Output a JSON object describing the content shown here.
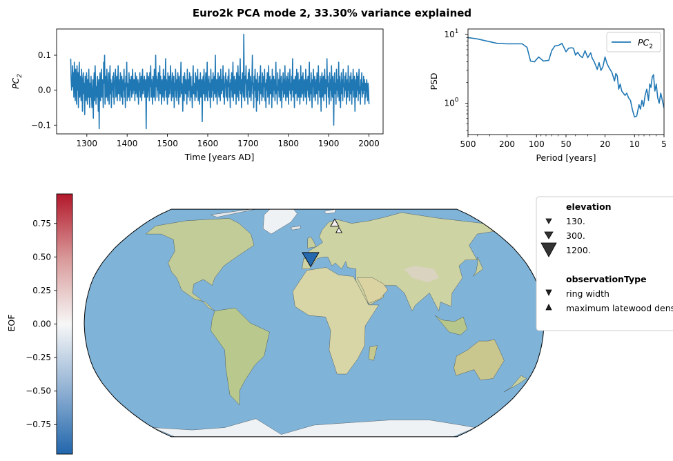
{
  "figure": {
    "title": "Euro2k PCA mode 2, 33.30% variance explained"
  },
  "chart_data": [
    {
      "id": "pc-timeseries",
      "type": "line",
      "xlabel": "Time [years AD]",
      "ylabel_main": "PC",
      "ylabel_sub": "2",
      "xlim": [
        1225,
        2035
      ],
      "ylim": [
        -0.125,
        0.175
      ],
      "xticks": [
        1300,
        1400,
        1500,
        1600,
        1700,
        1800,
        1900,
        2000
      ],
      "yticks": [
        -0.1,
        0.0,
        0.1
      ],
      "ytick_labels": [
        "−0.1",
        "0.0",
        "0.1"
      ],
      "series_color": "#1f77b4",
      "x_start": 1260,
      "x_end": 2000,
      "series_note_hidden": "",
      "values": [
        0.09,
        0.03,
        0.0,
        0.02,
        0.07,
        0.01,
        0.05,
        -0.02,
        0.08,
        0.03,
        -0.03,
        0.06,
        0.02,
        -0.04,
        0.07,
        0.0,
        0.05,
        -0.05,
        0.03,
        0.08,
        -0.02,
        0.04,
        0.01,
        -0.03,
        0.06,
        0.02,
        -0.06,
        0.03,
        0.05,
        -0.01,
        0.02,
        -0.07,
        0.04,
        0.0,
        -0.03,
        0.05,
        0.01,
        -0.04,
        0.03,
        -0.02,
        0.06,
        0.0,
        -0.05,
        0.02,
        -0.02,
        0.04,
        -0.01,
        -0.05,
        0.0,
        0.03,
        -0.08,
        0.01,
        0.05,
        -0.03,
        0.07,
        0.02,
        -0.04,
        0.01,
        -0.02,
        0.04,
        0.0,
        -0.06,
        0.03,
        -0.11,
        0.02,
        0.05,
        -0.03,
        0.01,
        0.06,
        -0.02,
        0.03,
        0.0,
        -0.05,
        0.08,
        0.02,
        0.1,
        -0.04,
        0.01,
        0.04,
        -0.02,
        0.06,
        0.0,
        -0.03,
        0.02,
        0.05,
        -0.04,
        0.01,
        0.07,
        -0.01,
        0.03,
        -0.05,
        0.02,
        0.0,
        0.04,
        -0.02,
        0.05,
        -0.04,
        0.01,
        0.03,
        0.06,
        -0.02,
        0.0,
        0.04,
        -0.03,
        0.02,
        0.07,
        -0.01,
        0.03,
        0.0,
        -0.03,
        0.05,
        0.02,
        -0.02,
        0.04,
        0.01,
        -0.04,
        0.03,
        0.0,
        0.06,
        -0.02,
        0.02,
        -0.05,
        0.04,
        0.01,
        0.08,
        -0.03,
        0.02,
        0.0,
        -0.02,
        0.05,
        0.01,
        -0.03,
        0.03,
        0.0,
        0.04,
        -0.02,
        0.02,
        0.06,
        -0.01,
        0.03,
        0.0,
        0.03,
        -0.03,
        0.05,
        -0.01,
        0.02,
        0.04,
        -0.02,
        0.01,
        0.03,
        -0.04,
        0.02,
        0.0,
        0.05,
        -0.02,
        0.01,
        0.04,
        -0.03,
        0.02,
        0.06,
        -0.01,
        0.03,
        0.0,
        0.04,
        -0.02,
        0.01,
        0.03,
        -0.11,
        0.02,
        0.05,
        -0.02,
        0.0,
        0.04,
        0.02,
        -0.03,
        0.05,
        0.01,
        0.07,
        -0.02,
        0.03,
        0.0,
        -0.04,
        0.04,
        0.02,
        -0.02,
        0.06,
        0.0,
        -0.03,
        0.1,
        0.01,
        0.04,
        -0.02,
        0.03,
        0.0,
        0.05,
        -0.03,
        0.02,
        0.07,
        -0.01,
        0.04,
        0.0,
        -0.04,
        0.03,
        0.01,
        -0.02,
        0.06,
        0.02,
        -0.03,
        0.04,
        0.0,
        0.09,
        -0.02,
        0.03,
        0.01,
        -0.04,
        0.05,
        0.02,
        -0.02,
        0.04,
        -0.01,
        0.03,
        0.07,
        0.0,
        -0.03,
        0.02,
        0.05,
        -0.02,
        0.01,
        0.04,
        -0.05,
        0.02,
        0.0,
        0.06,
        -0.02,
        0.03,
        -0.03,
        0.01,
        0.05,
        0.02,
        -0.04,
        0.04,
        0.0,
        -0.02,
        0.03,
        0.08,
        -0.01,
        0.02,
        0.0,
        -0.06,
        0.04,
        0.01,
        -0.03,
        0.05,
        0.02,
        -0.01,
        0.03,
        0.0,
        -0.04,
        0.06,
        0.01,
        -0.02,
        0.03,
        0.0,
        0.05,
        -0.03,
        0.02,
        0.04,
        -0.02,
        0.01,
        -0.05,
        0.03,
        0.07,
        -0.01,
        0.02,
        0.0,
        -0.03,
        0.05,
        0.01,
        -0.02,
        0.04,
        0.0,
        0.06,
        -0.03,
        0.02,
        0.03,
        -0.04,
        0.01,
        0.05,
        -0.02,
        0.0,
        0.03,
        -0.09,
        0.02,
        0.04,
        -0.01,
        0.06,
        0.0,
        -0.03,
        0.02,
        0.05,
        -0.02,
        0.01,
        0.08,
        -0.03,
        0.03,
        0.0,
        0.04,
        -0.02,
        0.02,
        -0.05,
        0.06,
        0.01,
        -0.02,
        0.03,
        0.0,
        0.05,
        -0.03,
        0.02,
        0.04,
        -0.01,
        0.1,
        -0.02,
        0.01,
        0.03,
        -0.04,
        0.02,
        0.05,
        0.0,
        -0.02,
        0.04,
        0.01,
        -0.03,
        0.06,
        0.02,
        -0.01,
        0.03,
        0.0,
        0.07,
        -0.02,
        0.04,
        -0.04,
        0.01,
        0.02,
        0.05,
        -0.02,
        0.03,
        0.0,
        -0.03,
        0.04,
        0.01,
        0.06,
        -0.02,
        0.02,
        -0.05,
        0.03,
        0.0,
        0.05,
        -0.02,
        0.01,
        0.08,
        -0.03,
        0.02,
        0.04,
        -0.01,
        0.0,
        0.03,
        -0.04,
        0.05,
        0.01,
        -0.02,
        0.07,
        0.02,
        -0.03,
        0.04,
        0.0,
        0.09,
        -0.01,
        0.03,
        -0.05,
        0.02,
        0.05,
        0.0,
        -0.02,
        0.16,
        0.01,
        -0.03,
        0.04,
        0.02,
        0.07,
        -0.02,
        0.01,
        0.03,
        -0.04,
        0.05,
        0.0,
        0.06,
        -0.02,
        0.02,
        0.04,
        -0.03,
        0.01,
        0.03,
        0.1,
        -0.01,
        0.02,
        -0.05,
        0.04,
        0.0,
        0.06,
        -0.02,
        0.03,
        -0.06,
        0.01,
        0.05,
        -0.03,
        0.02,
        0.0,
        0.04,
        -0.04,
        0.03,
        0.07,
        -0.01,
        0.02,
        -0.03,
        0.05,
        0.0,
        -0.02,
        0.04,
        0.01,
        0.06,
        -0.03,
        0.02,
        -0.05,
        0.03,
        0.0,
        0.05,
        -0.02,
        0.01,
        0.07,
        -0.04,
        0.02,
        0.04,
        -0.01,
        0.0,
        0.03,
        -0.05,
        0.06,
        0.01,
        -0.02,
        0.04,
        0.0,
        0.03,
        -0.03,
        0.02,
        0.08,
        -0.01,
        0.01,
        -0.04,
        0.05,
        0.0,
        0.03,
        -0.02,
        0.02,
        0.06,
        -0.03,
        0.01,
        0.04,
        -0.05,
        0.02,
        0.0,
        0.05,
        -0.02,
        0.03,
        -0.01,
        0.07,
        0.0,
        -0.03,
        0.02,
        0.04,
        -0.02,
        0.01,
        0.05,
        -0.04,
        0.03,
        0.0,
        0.06,
        -0.01,
        0.02,
        -0.03,
        0.04,
        0.0,
        0.09,
        -0.02,
        0.01,
        0.03,
        -0.05,
        0.02,
        0.04,
        -0.01,
        0.0,
        0.06,
        -0.03,
        0.02,
        0.05,
        -0.02,
        0.01,
        0.03,
        -0.04,
        0.0,
        0.07,
        -0.02,
        0.02,
        0.04,
        -0.01,
        0.05,
        -0.03,
        0.01,
        0.03,
        0.0,
        -0.02,
        0.06,
        0.02,
        -0.04,
        0.03,
        0.0,
        0.04,
        -0.02,
        0.01,
        0.08,
        -0.03,
        0.02,
        -0.01,
        0.05,
        0.0,
        -0.05,
        0.03,
        0.01,
        0.06,
        -0.02,
        0.02,
        0.04,
        -0.03,
        0.0,
        0.03,
        -0.01,
        0.05,
        0.01,
        -0.04,
        0.07,
        0.0,
        0.02,
        -0.02,
        0.04,
        0.01,
        -0.06,
        0.03,
        0.05,
        -0.02,
        0.0,
        0.04,
        -0.03,
        0.02,
        0.06,
        -0.01,
        0.03,
        0.0,
        -0.05,
        0.09,
        0.01,
        0.04,
        -0.02,
        0.02,
        -0.04,
        0.05,
        0.0,
        0.03,
        -0.03,
        0.07,
        0.01,
        -0.02,
        0.04,
        0.0,
        -0.1,
        0.03,
        0.05,
        -0.01,
        0.02,
        -0.04,
        0.06,
        0.0,
        0.03,
        -0.02,
        0.01,
        0.08,
        -0.03,
        0.04,
        0.0,
        -0.05,
        0.02,
        0.05,
        -0.01,
        0.03,
        -0.03,
        0.06,
        0.01,
        0.02,
        -0.02,
        0.04,
        0.0,
        0.05,
        -0.04,
        0.01,
        0.03,
        -0.02,
        0.07,
        0.0,
        0.02,
        -0.03,
        0.04,
        -0.01,
        0.05,
        0.01,
        -0.04,
        0.03,
        0.0,
        0.06,
        -0.02,
        0.02,
        0.04,
        -0.06,
        0.01,
        0.03,
        -0.02,
        0.05,
        0.0,
        0.04,
        -0.03,
        0.02,
        0.06,
        -0.01,
        0.01,
        -0.04,
        0.03,
        0.0,
        0.05,
        -0.02,
        0.02,
        -0.01,
        0.04,
        0.0,
        0.03,
        -0.04,
        0.02,
        -0.02,
        0.01,
        0.03,
        0.0,
        -0.03,
        0.02,
        0.0,
        -0.04
      ]
    },
    {
      "id": "psd",
      "type": "line",
      "xscale": "log-reversed",
      "yscale": "log",
      "xlabel": "Period [years]",
      "ylabel": "PSD",
      "xlim": [
        500,
        5
      ],
      "ylim": [
        0.35,
        12
      ],
      "xticks": [
        500,
        200,
        100,
        50,
        20,
        10,
        5
      ],
      "xtick_labels": [
        "500",
        "200",
        "100",
        "50",
        "20",
        "10",
        "5"
      ],
      "yticks": [
        1,
        10
      ],
      "legend": {
        "label_main": "PC",
        "label_sub": "2",
        "position": "upper right"
      },
      "series_color": "#1f77b4",
      "x": [
        500,
        400,
        320,
        250,
        200,
        160,
        140,
        125,
        115,
        105,
        95,
        85,
        75,
        70,
        65,
        60,
        55,
        50,
        47,
        44,
        42,
        40,
        38,
        36,
        34,
        32,
        30,
        28,
        27,
        26,
        25,
        24,
        23,
        22,
        21,
        20,
        19,
        18,
        17,
        16,
        15.5,
        15,
        14.5,
        14,
        13.5,
        13,
        12.5,
        12,
        11.5,
        11,
        10.5,
        10,
        9.5,
        9,
        8.7,
        8.4,
        8.1,
        7.8,
        7.5,
        7.2,
        7.0,
        6.8,
        6.6,
        6.4,
        6.2,
        6.0,
        5.8,
        5.6,
        5.4,
        5.2,
        5.0
      ],
      "y": [
        9.0,
        8.6,
        8.0,
        7.4,
        7.3,
        7.3,
        7.3,
        6.5,
        4.1,
        4.0,
        4.7,
        4.1,
        4.2,
        5.8,
        6.8,
        6.9,
        7.4,
        5.6,
        6.3,
        6.4,
        6.3,
        5.0,
        5.5,
        4.9,
        4.6,
        5.8,
        4.6,
        5.4,
        4.5,
        4.1,
        3.6,
        3.1,
        3.9,
        3.0,
        3.4,
        4.7,
        3.7,
        3.2,
        2.8,
        2.1,
        2.7,
        2.5,
        1.6,
        1.9,
        1.5,
        1.4,
        1.3,
        1.4,
        1.2,
        1.1,
        0.8,
        0.63,
        0.65,
        0.95,
        0.82,
        1.1,
        0.9,
        1.3,
        1.6,
        1.1,
        1.9,
        1.7,
        2.4,
        2.6,
        1.5,
        1.9,
        1.2,
        1.0,
        1.4,
        1.1,
        0.85
      ]
    },
    {
      "id": "eof-map",
      "type": "scatter",
      "map": "Robinson projection world map",
      "colorbar": {
        "label": "EOF",
        "vmin": -0.97,
        "vmax": 0.97,
        "ticks": [
          0.75,
          0.5,
          0.25,
          0.0,
          -0.25,
          -0.5,
          -0.75
        ],
        "tick_labels": [
          "0.75",
          "0.50",
          "0.25",
          "0.00",
          "−0.25",
          "−0.50",
          "−0.75"
        ],
        "colormap": [
          "#2166ac",
          "#f7f7f7",
          "#b2182b"
        ]
      },
      "points": [
        {
          "lon": -3.0,
          "lat": 42.5,
          "eof": -0.95,
          "elevation": 1200,
          "observationType": "ring width",
          "marker": "down-triangle"
        },
        {
          "lon": 22.0,
          "lat": 68.0,
          "eof": 0.05,
          "elevation": 300,
          "observationType": "maximum latewood density",
          "marker": "up-triangle"
        },
        {
          "lon": 25.0,
          "lat": 62.5,
          "eof": 0.0,
          "elevation": 130,
          "observationType": "maximum latewood density",
          "marker": "up-triangle"
        }
      ],
      "legend": {
        "elevation_title": "elevation",
        "elevation_items": [
          {
            "label": "130.",
            "size": "small"
          },
          {
            "label": "300.",
            "size": "medium"
          },
          {
            "label": "1200.",
            "size": "large"
          }
        ],
        "type_title": "observationType",
        "type_items": [
          {
            "label": "ring width",
            "marker": "down-triangle"
          },
          {
            "label": "maximum latewood density",
            "marker": "up-triangle"
          }
        ]
      }
    }
  ],
  "colors": {
    "ocean": "#7fb3d8",
    "land": "#c9d3a1",
    "ice": "#eef2f4",
    "line": "#1f77b4"
  }
}
